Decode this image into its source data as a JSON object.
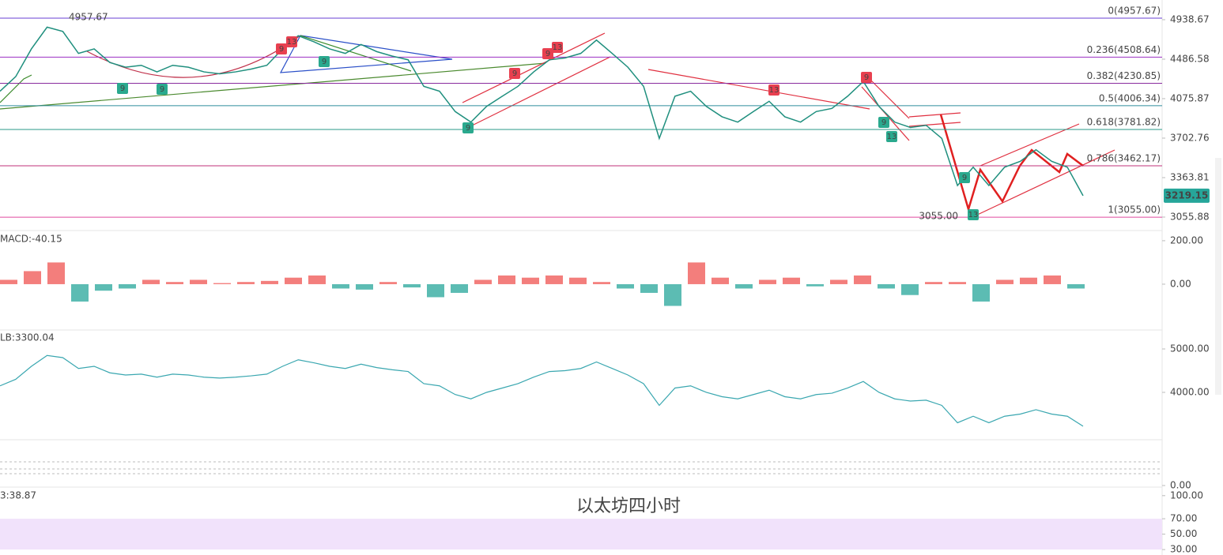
{
  "chart_data": [
    {
      "type": "line",
      "color": "#1f8f7e",
      "log_scale": true,
      "ylim": [
        2969,
        5181
      ],
      "yticks": [
        {
          "value": 4938.67,
          "label": "4938.67"
        },
        {
          "value": 4486.58,
          "label": "4486.58"
        },
        {
          "value": 4075.87,
          "label": "4075.87"
        },
        {
          "value": 3702.76,
          "label": "3702.76"
        },
        {
          "value": 3363.81,
          "label": "3363.81"
        },
        {
          "value": 3055.88,
          "label": "3055.88"
        }
      ],
      "values": [
        4150,
        4300,
        4600,
        4850,
        4800,
        4550,
        4600,
        4450,
        4400,
        4420,
        4350,
        4420,
        4400,
        4350,
        4330,
        4350,
        4380,
        4420,
        4600,
        4750,
        4680,
        4600,
        4550,
        4650,
        4570,
        4520,
        4480,
        4200,
        4150,
        3950,
        3850,
        4000,
        4100,
        4200,
        4350,
        4480,
        4500,
        4550,
        4700,
        4550,
        4400,
        4200,
        3700,
        4100,
        4150,
        4000,
        3900,
        3850,
        3950,
        4050,
        3900,
        3850,
        3950,
        3980,
        4100,
        4250,
        4000,
        3850,
        3800,
        3820,
        3700,
        3300,
        3450,
        3300,
        3450,
        3500,
        3600,
        3500,
        3450,
        3219.15
      ],
      "last_price": 3219.15,
      "fib_levels": [
        {
          "value": 4957.67,
          "label": "0(4957.67)",
          "color": "#6a3fd6"
        },
        {
          "value": 4508.64,
          "label": "0.236(4508.64)",
          "color": "#9c2fc2"
        },
        {
          "value": 4230.85,
          "label": "0.382(4230.85)",
          "color": "#8a2b9e"
        },
        {
          "value": 4006.34,
          "label": "0.5(4006.34)",
          "color": "#2f8c9c"
        },
        {
          "value": 3781.82,
          "label": "0.618(3781.82)",
          "color": "#2a9a8a"
        },
        {
          "value": 3462.17,
          "label": "0.786(3462.17)",
          "color": "#c2307a"
        },
        {
          "value": 3055.0,
          "label": "1(3055.00)",
          "color": "#e04a9f"
        }
      ],
      "annotations": [
        "4957.67",
        "3055.00",
        "以太坊四小时"
      ],
      "td_labels": [
        "9",
        "13",
        "9",
        "9",
        "9",
        "9",
        "13",
        "9",
        "9",
        "13",
        "9",
        "9",
        "13",
        "9",
        "13"
      ]
    },
    {
      "type": "bar",
      "title": "MACD:-40.15",
      "up_color": "#ef5350",
      "down_color": "#26a69a",
      "ylim": [
        -200,
        236
      ],
      "yticks": [
        {
          "value": 200,
          "label": "200.00"
        },
        {
          "value": 0,
          "label": "0.00"
        }
      ],
      "values": [
        20,
        60,
        100,
        -80,
        -30,
        -20,
        20,
        10,
        20,
        5,
        10,
        15,
        30,
        40,
        -20,
        -25,
        10,
        -15,
        -60,
        -40,
        20,
        40,
        30,
        40,
        30,
        10,
        -20,
        -40,
        -100,
        100,
        30,
        -20,
        20,
        30,
        -10,
        20,
        40,
        -20,
        -50,
        10,
        10,
        -80,
        20,
        30,
        40,
        -20
      ]
    },
    {
      "type": "line",
      "title": "LB:3300.04",
      "color": "#3aa7b0",
      "ylim": [
        2945,
        5400
      ],
      "yticks": [
        {
          "value": 5000,
          "label": "5000.00"
        },
        {
          "value": 4000,
          "label": "4000.00"
        }
      ]
    },
    {
      "type": "line",
      "ylim": [
        0,
        40
      ],
      "yticks": [
        {
          "value": 0,
          "label": "0.00"
        }
      ]
    },
    {
      "type": "line",
      "title": "3:38.87",
      "ylim": [
        26,
        108
      ],
      "yticks": [
        {
          "value": 100,
          "label": "100.00"
        },
        {
          "value": 70,
          "label": "70.00"
        },
        {
          "value": 50,
          "label": "50.00"
        },
        {
          "value": 30,
          "label": "30.00"
        }
      ]
    }
  ]
}
